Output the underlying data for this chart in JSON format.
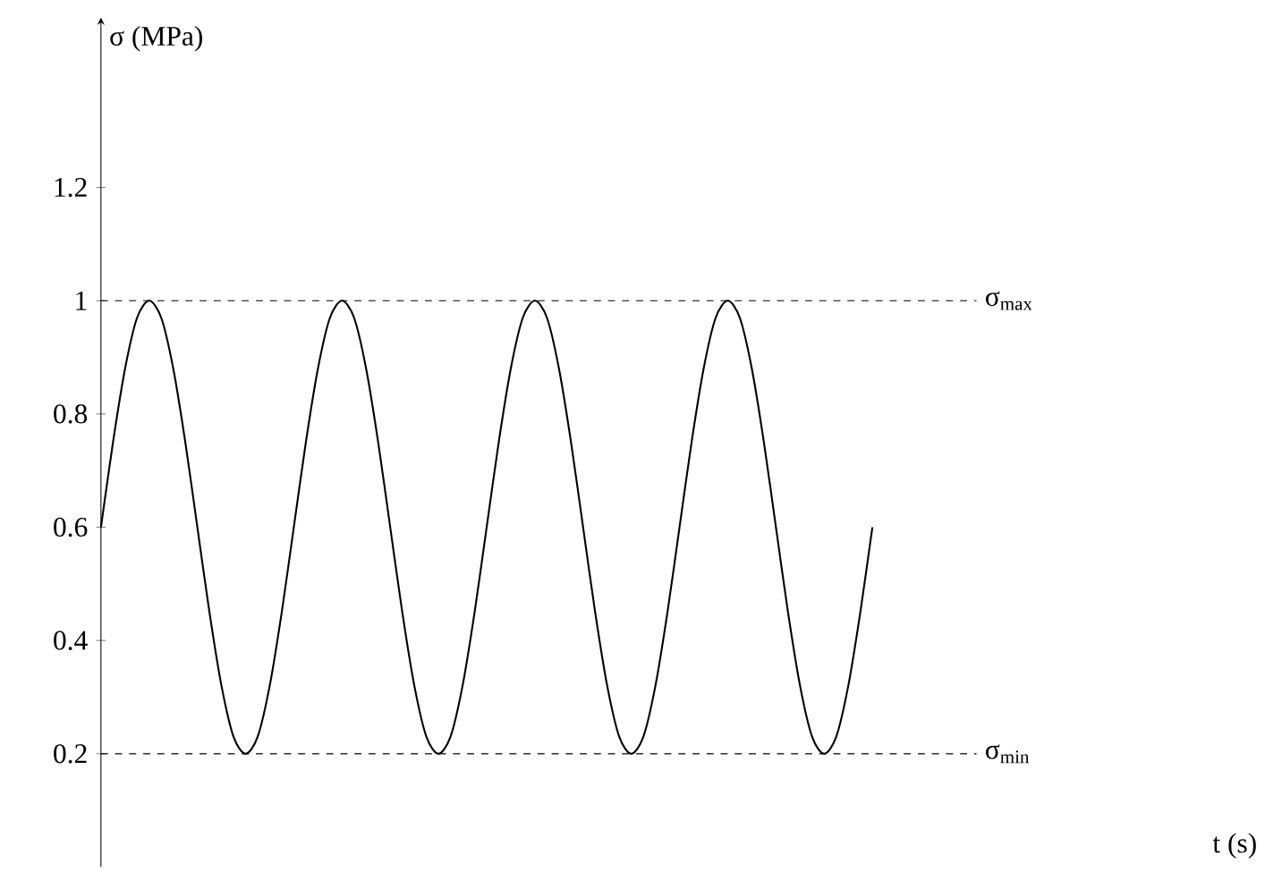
{
  "chart_data": {
    "type": "line",
    "annotations": [
      "t (s)"
    ],
    "ylabel": "σ (MPa)",
    "categories": [
      null,
      null,
      null,
      null,
      null,
      null,
      null,
      null,
      null,
      null,
      null,
      null,
      null,
      null,
      null,
      null,
      null,
      null,
      null,
      null,
      null,
      null,
      null,
      null,
      null,
      null,
      null,
      null,
      null,
      null,
      null,
      null,
      null,
      null,
      null,
      null,
      null,
      null,
      null,
      null,
      null,
      null,
      null,
      null,
      null,
      null,
      null,
      null,
      null,
      null,
      null,
      null,
      null,
      null,
      null,
      null,
      null,
      null,
      null,
      null,
      null,
      null,
      null,
      null,
      null
    ],
    "series": [
      {
        "color": "#000000",
        "values": [
          0.6,
          0.75,
          0.88,
          0.97,
          1,
          0.97,
          0.88,
          0.75,
          0.6,
          0.45,
          0.32,
          0.23,
          0.2,
          0.23,
          0.32,
          0.45,
          0.6,
          0.75,
          0.88,
          0.97,
          1,
          0.97,
          0.88,
          0.75,
          0.6,
          0.45,
          0.32,
          0.23,
          0.2,
          0.23,
          0.32,
          0.45,
          0.6,
          0.75,
          0.88,
          0.97,
          1,
          0.97,
          0.88,
          0.75,
          0.6,
          0.45,
          0.32,
          0.23,
          0.2,
          0.23,
          0.32,
          0.45,
          0.6,
          0.75,
          0.88,
          0.97,
          1,
          0.97,
          0.88,
          0.75,
          0.6,
          0.45,
          0.32,
          0.23,
          0.2,
          0.23,
          0.32,
          0.45,
          0.6
        ]
      }
    ],
    "ylim": [
      0,
      1.5
    ],
    "yticks": [
      0.2,
      0.4,
      0.6,
      0.8,
      1,
      1.2
    ],
    "grid": false,
    "marker": "none",
    "line_style": "solid",
    "ref_lines": [
      {
        "axis": "y",
        "value": 1,
        "label": "σ$_{max}$",
        "line_style": "dashed",
        "color": "#000000"
      },
      {
        "axis": "y",
        "value": 0.2,
        "label": "σ$_{min}$",
        "line_style": "dashed",
        "color": "#000000"
      }
    ]
  }
}
